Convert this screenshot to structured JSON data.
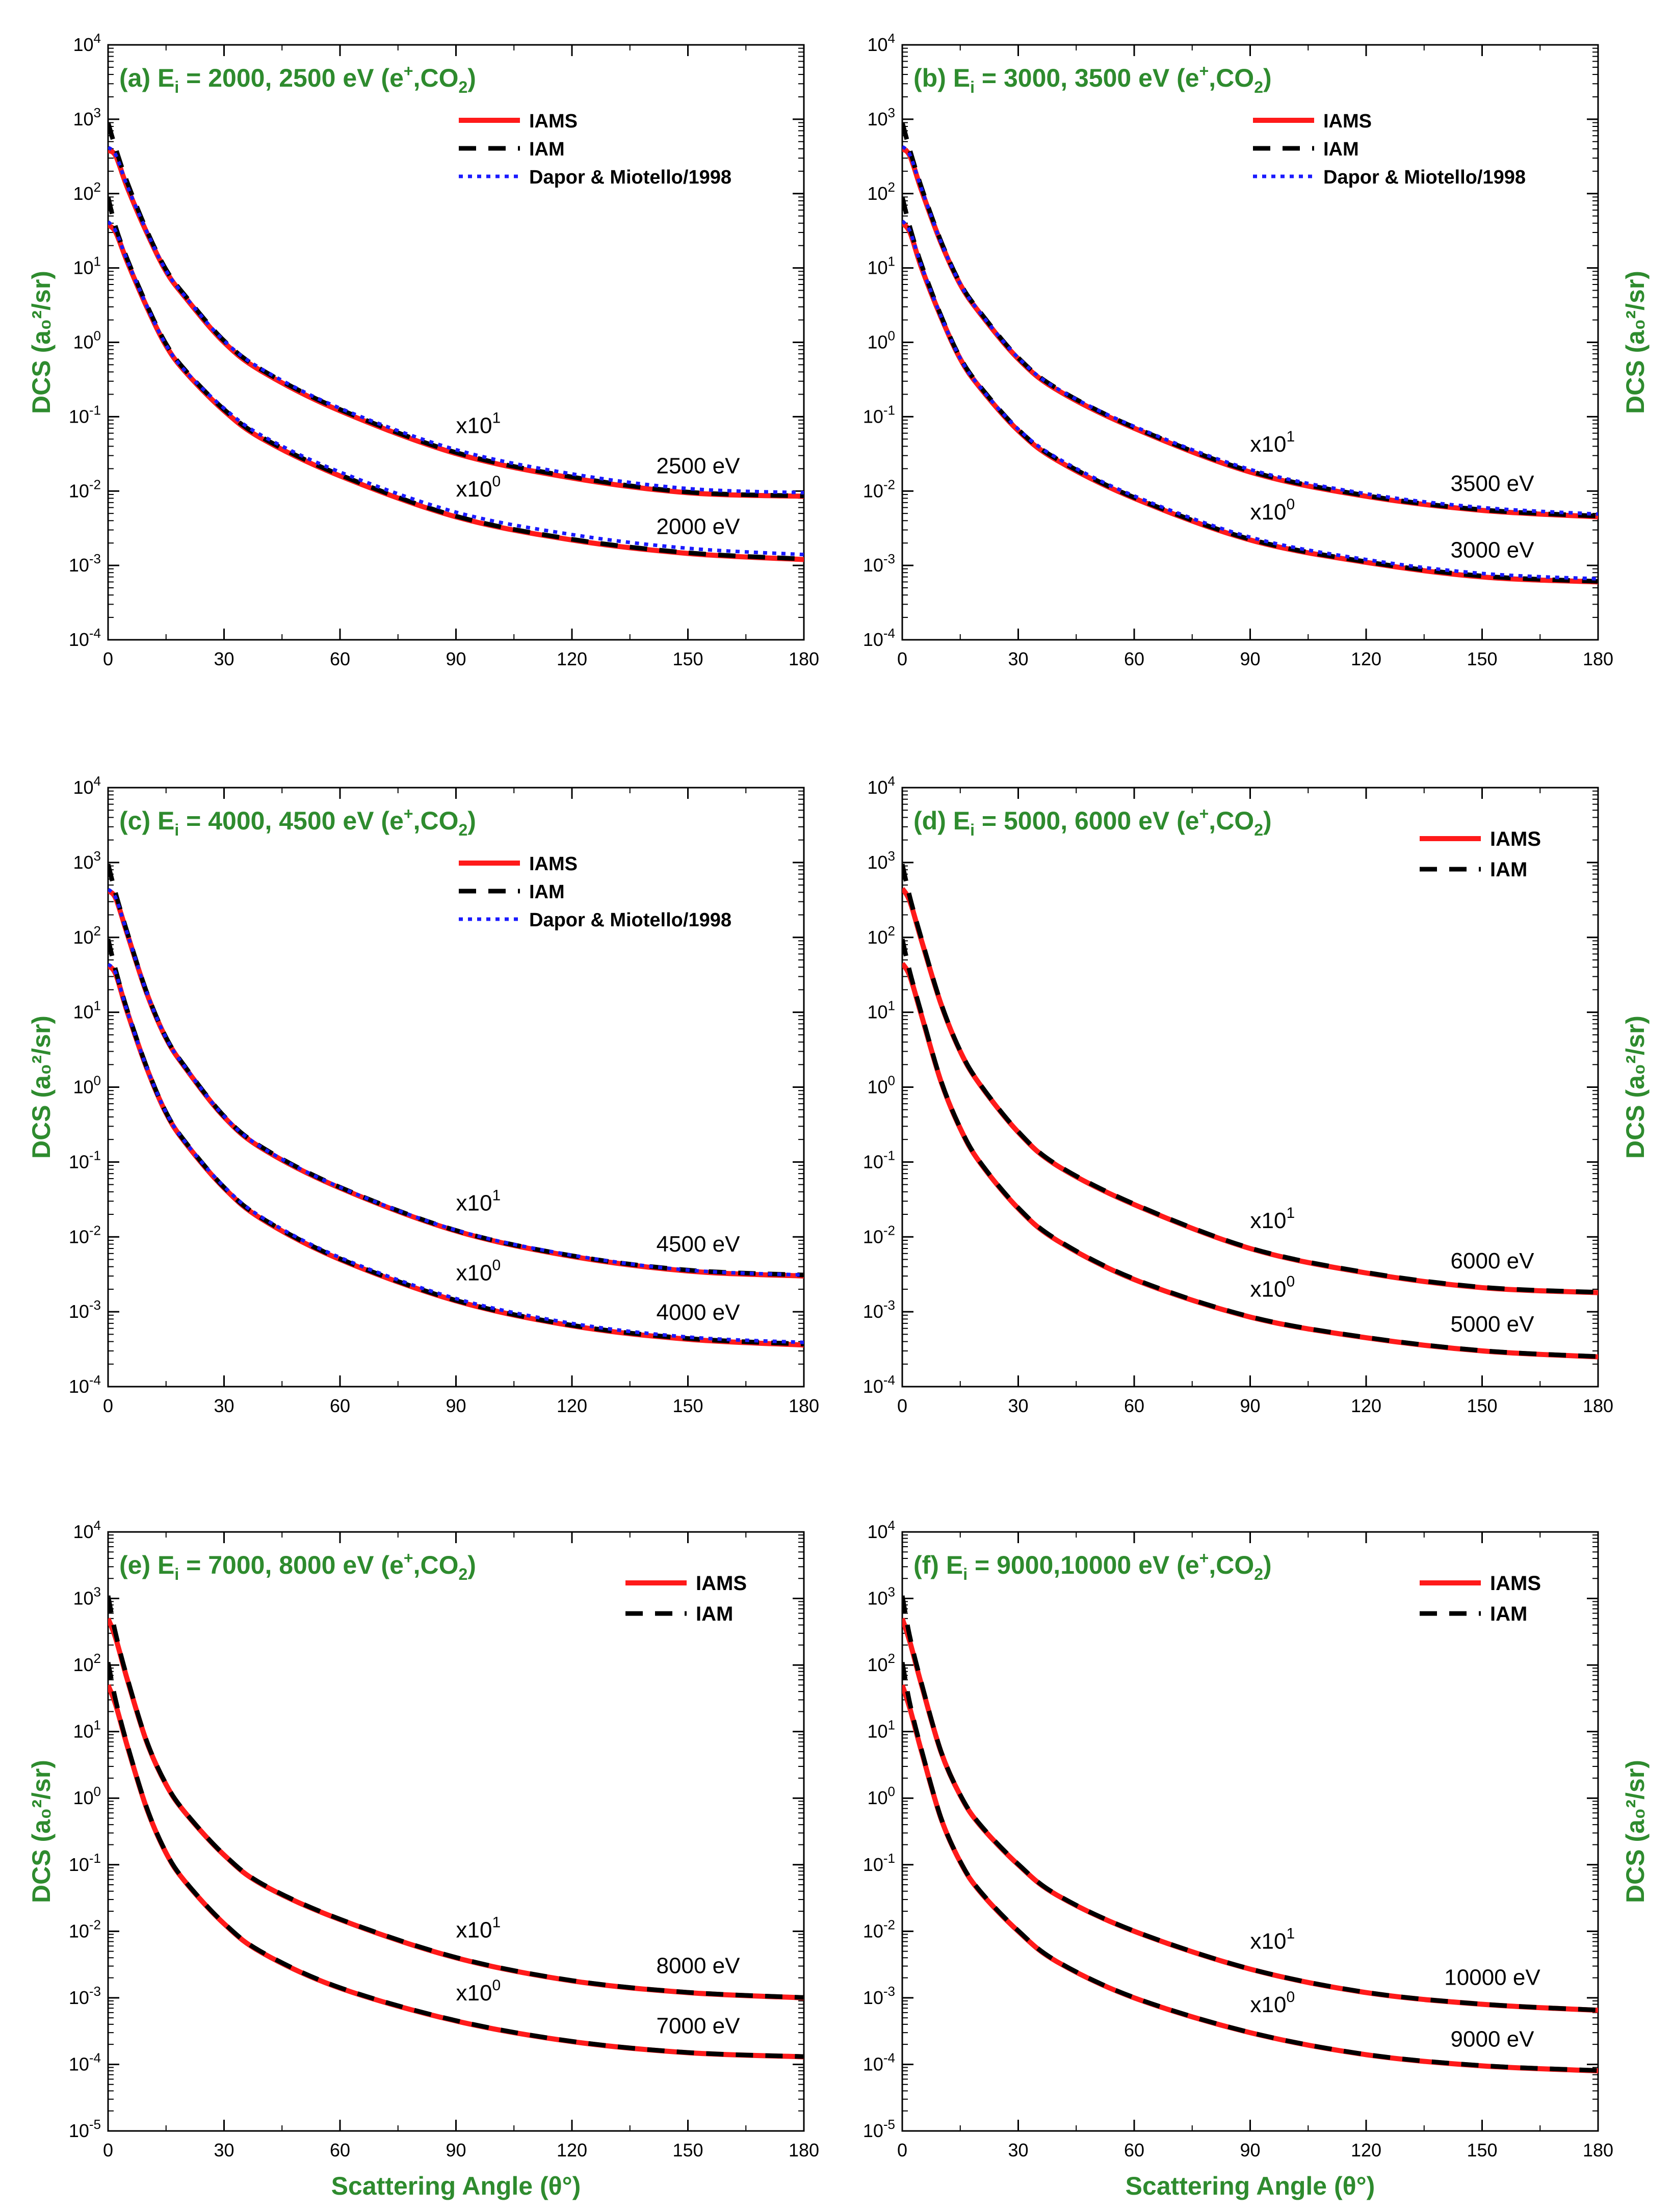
{
  "colors": {
    "IAMS": "#ff1a1a",
    "IAM": "#000000",
    "Dapor": "#1a1aff",
    "label": "#2e8b2e"
  },
  "common": {
    "xlabel": "Scattering Angle (θ°)",
    "ylabel": "DCS (a₀²/sr)",
    "xticks": [
      0,
      30,
      60,
      90,
      120,
      150,
      180
    ],
    "multiplier_upper": "x10",
    "multiplier_upper_exp": "1",
    "multiplier_lower": "x10",
    "multiplier_lower_exp": "0"
  },
  "chart_data": [
    {
      "type": "line",
      "id": "a",
      "title_pre": "(a) E",
      "title_sub": "i",
      "title_mid": " = 2000, 2500 eV (e",
      "title_sup": "+",
      "title_post": ",CO",
      "title_sub2": "2",
      "title_end": ")",
      "xlim": [
        0,
        180
      ],
      "ylim_exp": [
        -4,
        4
      ],
      "legend": [
        "IAMS",
        "IAM",
        "Dapor & Miotello/1998"
      ],
      "legend_position": "top-right",
      "upper_label": "2500 eV",
      "lower_label": "2000 eV",
      "x": [
        0,
        2,
        5,
        10,
        15,
        20,
        30,
        40,
        60,
        90,
        120,
        150,
        180
      ],
      "series": [
        {
          "name": "IAMS",
          "curve": "upper",
          "values": [
            380,
            320,
            120,
            30,
            9,
            4,
            1.0,
            0.4,
            0.12,
            0.032,
            0.015,
            0.0095,
            0.0085
          ]
        },
        {
          "name": "IAM",
          "curve": "upper",
          "values": [
            900,
            400,
            140,
            32,
            9.5,
            4.2,
            1.05,
            0.42,
            0.125,
            0.033,
            0.0155,
            0.0097,
            0.0086
          ]
        },
        {
          "name": "Dapor & Miotello/1998",
          "curve": "upper",
          "values": [
            420,
            330,
            125,
            31,
            9.2,
            4.1,
            1.05,
            0.43,
            0.13,
            0.036,
            0.017,
            0.0108,
            0.0095
          ]
        },
        {
          "name": "IAMS",
          "curve": "lower",
          "values": [
            38,
            30,
            12,
            3,
            0.9,
            0.4,
            0.12,
            0.05,
            0.016,
            0.0045,
            0.0022,
            0.00145,
            0.0012
          ]
        },
        {
          "name": "IAM",
          "curve": "lower",
          "values": [
            90,
            35,
            13,
            3.2,
            0.95,
            0.42,
            0.125,
            0.052,
            0.0165,
            0.0046,
            0.00225,
            0.00148,
            0.00122
          ]
        },
        {
          "name": "Dapor & Miotello/1998",
          "curve": "lower",
          "values": [
            42,
            31,
            12.5,
            3.1,
            0.92,
            0.41,
            0.13,
            0.055,
            0.018,
            0.0052,
            0.0026,
            0.0017,
            0.0014
          ]
        }
      ]
    },
    {
      "type": "line",
      "id": "b",
      "title_pre": "(b) E",
      "title_sub": "i",
      "title_mid": " = 3000, 3500 eV (e",
      "title_sup": "+",
      "title_post": ",CO",
      "title_sub2": "2",
      "title_end": ")",
      "xlim": [
        0,
        180
      ],
      "ylim_exp": [
        -4,
        4
      ],
      "legend": [
        "IAMS",
        "IAM",
        "Dapor & Miotello/1998"
      ],
      "legend_position": "top-right",
      "upper_label": "3500 eV",
      "lower_label": "3000 eV",
      "x": [
        0,
        2,
        5,
        10,
        15,
        20,
        30,
        40,
        60,
        90,
        120,
        150,
        180
      ],
      "series": [
        {
          "name": "IAMS",
          "curve": "upper",
          "values": [
            400,
            320,
            110,
            22,
            6,
            2.5,
            0.6,
            0.23,
            0.07,
            0.018,
            0.0085,
            0.0055,
            0.0045
          ]
        },
        {
          "name": "IAM",
          "curve": "upper",
          "values": [
            900,
            380,
            120,
            23,
            6.2,
            2.6,
            0.62,
            0.24,
            0.072,
            0.0185,
            0.0087,
            0.0056,
            0.0046
          ]
        },
        {
          "name": "Dapor & Miotello/1998",
          "curve": "upper",
          "values": [
            430,
            330,
            115,
            22.5,
            6.1,
            2.55,
            0.62,
            0.24,
            0.074,
            0.0195,
            0.0092,
            0.006,
            0.0049
          ]
        },
        {
          "name": "IAMS",
          "curve": "lower",
          "values": [
            40,
            30,
            10,
            2.2,
            0.6,
            0.25,
            0.065,
            0.026,
            0.008,
            0.0022,
            0.0011,
            0.0007,
            0.0006
          ]
        },
        {
          "name": "IAM",
          "curve": "lower",
          "values": [
            90,
            35,
            11,
            2.3,
            0.62,
            0.26,
            0.067,
            0.027,
            0.0082,
            0.00225,
            0.00112,
            0.00072,
            0.00061
          ]
        },
        {
          "name": "Dapor & Miotello/1998",
          "curve": "lower",
          "values": [
            43,
            31,
            10.5,
            2.25,
            0.61,
            0.255,
            0.068,
            0.028,
            0.0086,
            0.0024,
            0.0012,
            0.00078,
            0.00066
          ]
        }
      ]
    },
    {
      "type": "line",
      "id": "c",
      "title_pre": "(c) E",
      "title_sub": "i",
      "title_mid": " = 4000, 4500 eV (e",
      "title_sup": "+",
      "title_post": ",CO",
      "title_sub2": "2",
      "title_end": ")",
      "xlim": [
        0,
        180
      ],
      "ylim_exp": [
        -4,
        4
      ],
      "legend": [
        "IAMS",
        "IAM",
        "Dapor & Miotello/1998"
      ],
      "legend_position": "top-right",
      "upper_label": "4500 eV",
      "lower_label": "4000 eV",
      "x": [
        0,
        2,
        5,
        10,
        15,
        20,
        30,
        40,
        60,
        90,
        120,
        150,
        180
      ],
      "series": [
        {
          "name": "IAMS",
          "curve": "upper",
          "values": [
            420,
            330,
            110,
            18,
            4.5,
            1.8,
            0.4,
            0.15,
            0.045,
            0.012,
            0.0055,
            0.0035,
            0.003
          ]
        },
        {
          "name": "IAM",
          "curve": "upper",
          "values": [
            950,
            380,
            115,
            18.5,
            4.6,
            1.85,
            0.41,
            0.155,
            0.046,
            0.0122,
            0.0056,
            0.0036,
            0.0031
          ]
        },
        {
          "name": "Dapor & Miotello/1998",
          "curve": "upper",
          "values": [
            440,
            335,
            112,
            18.3,
            4.55,
            1.83,
            0.41,
            0.154,
            0.046,
            0.0123,
            0.0057,
            0.0036,
            0.0031
          ]
        },
        {
          "name": "IAMS",
          "curve": "lower",
          "values": [
            42,
            32,
            10,
            1.8,
            0.45,
            0.18,
            0.045,
            0.017,
            0.005,
            0.0014,
            0.00065,
            0.00043,
            0.00036
          ]
        },
        {
          "name": "IAM",
          "curve": "lower",
          "values": [
            95,
            36,
            10.5,
            1.85,
            0.46,
            0.185,
            0.046,
            0.0175,
            0.0051,
            0.00142,
            0.00066,
            0.00044,
            0.00037
          ]
        },
        {
          "name": "Dapor & Miotello/1998",
          "curve": "lower",
          "values": [
            44,
            33,
            10.2,
            1.83,
            0.46,
            0.184,
            0.047,
            0.018,
            0.0053,
            0.0015,
            0.0007,
            0.00046,
            0.00039
          ]
        }
      ]
    },
    {
      "type": "line",
      "id": "d",
      "title_pre": "(d) E",
      "title_sub": "i",
      "title_mid": " = 5000, 6000 eV (e",
      "title_sup": "+",
      "title_post": ",CO",
      "title_sub2": "2",
      "title_end": ")",
      "xlim": [
        0,
        180
      ],
      "ylim_exp": [
        -4,
        4
      ],
      "legend": [
        "IAMS",
        "IAM"
      ],
      "legend_position": "top-right",
      "upper_label": "6000 eV",
      "lower_label": "5000 eV",
      "x": [
        0,
        2,
        5,
        10,
        15,
        20,
        30,
        40,
        60,
        90,
        120,
        150,
        180
      ],
      "series": [
        {
          "name": "IAMS",
          "curve": "upper",
          "values": [
            450,
            300,
            90,
            13,
            3,
            1.1,
            0.25,
            0.09,
            0.027,
            0.007,
            0.0033,
            0.0021,
            0.0018
          ]
        },
        {
          "name": "IAM",
          "curve": "upper",
          "values": [
            950,
            340,
            95,
            13.3,
            3.05,
            1.12,
            0.255,
            0.092,
            0.0275,
            0.0071,
            0.00335,
            0.00213,
            0.00182
          ]
        },
        {
          "name": "IAMS",
          "curve": "lower",
          "values": [
            45,
            30,
            9,
            1.2,
            0.28,
            0.1,
            0.024,
            0.009,
            0.0027,
            0.00085,
            0.00045,
            0.0003,
            0.00025
          ]
        },
        {
          "name": "IAM",
          "curve": "lower",
          "values": [
            95,
            34,
            9.5,
            1.23,
            0.285,
            0.102,
            0.0245,
            0.0092,
            0.00275,
            0.00086,
            0.000455,
            0.000303,
            0.000252
          ]
        }
      ]
    },
    {
      "type": "line",
      "id": "e",
      "title_pre": "(e) E",
      "title_sub": "i",
      "title_mid": " = 7000, 8000 eV (e",
      "title_sup": "+",
      "title_post": ",CO",
      "title_sub2": "2",
      "title_end": ")",
      "xlim": [
        0,
        180
      ],
      "ylim_exp": [
        -5,
        4
      ],
      "legend": [
        "IAMS",
        "IAM"
      ],
      "legend_position": "top-right",
      "upper_label": "8000 eV",
      "lower_label": "7000 eV",
      "x": [
        0,
        2,
        5,
        10,
        15,
        20,
        30,
        40,
        60,
        90,
        120,
        150,
        180
      ],
      "series": [
        {
          "name": "IAMS",
          "curve": "upper",
          "values": [
            500,
            250,
            60,
            7,
            1.6,
            0.6,
            0.14,
            0.05,
            0.015,
            0.004,
            0.0018,
            0.0012,
            0.001
          ]
        },
        {
          "name": "IAM",
          "curve": "upper",
          "values": [
            1100,
            290,
            63,
            7.2,
            1.63,
            0.61,
            0.142,
            0.051,
            0.0152,
            0.00405,
            0.00182,
            0.00121,
            0.00101
          ]
        },
        {
          "name": "IAMS",
          "curve": "lower",
          "values": [
            50,
            25,
            6,
            0.7,
            0.15,
            0.055,
            0.013,
            0.0047,
            0.0014,
            0.00045,
            0.00022,
            0.00015,
            0.00013
          ]
        },
        {
          "name": "IAM",
          "curve": "lower",
          "values": [
            110,
            29,
            6.3,
            0.72,
            0.153,
            0.056,
            0.0132,
            0.0048,
            0.00142,
            0.000455,
            0.000222,
            0.000151,
            0.000131
          ]
        }
      ]
    },
    {
      "type": "line",
      "id": "f",
      "title_pre": "(f) E",
      "title_sub": "i",
      "title_mid": " = 9000,10000 eV (e",
      "title_sup": "+",
      "title_post": ",CO",
      "title_sub2": "2",
      "title_end": ")",
      "xlim": [
        0,
        180
      ],
      "ylim_exp": [
        -5,
        4
      ],
      "legend": [
        "IAMS",
        "IAM"
      ],
      "legend_position": "top-right",
      "upper_label": "10000 eV",
      "lower_label": "9000 eV",
      "x": [
        0,
        2,
        5,
        10,
        15,
        20,
        30,
        40,
        60,
        90,
        120,
        150,
        180
      ],
      "series": [
        {
          "name": "IAMS",
          "curve": "upper",
          "values": [
            500,
            220,
            50,
            5,
            1.1,
            0.4,
            0.1,
            0.035,
            0.01,
            0.0027,
            0.0012,
            0.0008,
            0.00065
          ]
        },
        {
          "name": "IAM",
          "curve": "upper",
          "values": [
            1100,
            260,
            53,
            5.1,
            1.12,
            0.41,
            0.102,
            0.0355,
            0.0101,
            0.00272,
            0.00121,
            0.000805,
            0.000655
          ]
        },
        {
          "name": "IAMS",
          "curve": "lower",
          "values": [
            50,
            22,
            5,
            0.5,
            0.11,
            0.04,
            0.01,
            0.0035,
            0.001,
            0.0003,
            0.00014,
            9.5e-05,
            8e-05
          ]
        },
        {
          "name": "IAM",
          "curve": "lower",
          "values": [
            110,
            26,
            5.3,
            0.51,
            0.112,
            0.041,
            0.0102,
            0.00355,
            0.00101,
            0.000302,
            0.000141,
            9.6e-05,
            8.1e-05
          ]
        }
      ]
    }
  ]
}
